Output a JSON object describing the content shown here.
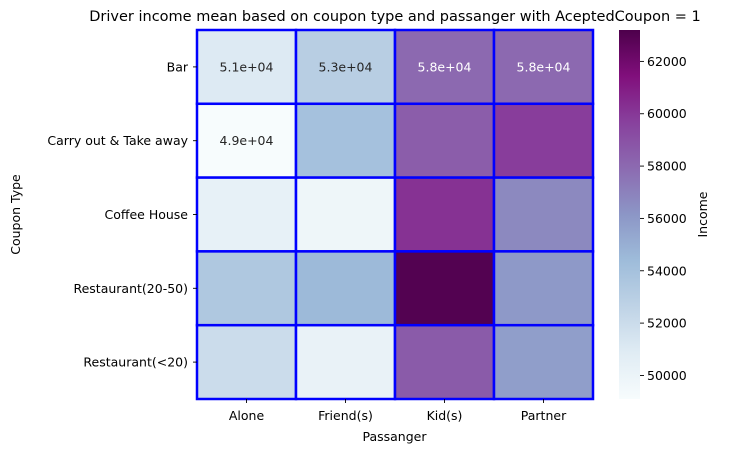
{
  "chart_data": {
    "type": "heatmap",
    "title": "Driver income mean based on coupon type and passanger with AceptedCoupon = 1",
    "xlabel": "Passanger",
    "ylabel": "Coupon Type",
    "x_categories": [
      "Alone",
      "Friend(s)",
      "Kid(s)",
      "Partner"
    ],
    "y_categories": [
      "Bar",
      "Carry out & Take away",
      "Coffee House",
      "Restaurant(20-50)",
      "Restaurant(<20)"
    ],
    "values": [
      [
        51000,
        53000,
        58000,
        58000
      ],
      [
        49000,
        54000,
        58500,
        59800
      ],
      [
        50300,
        49800,
        60200,
        56700
      ],
      [
        53500,
        54500,
        63000,
        56000
      ],
      [
        52000,
        50200,
        58600,
        55800
      ]
    ],
    "annotations": [
      [
        "5.1e+04",
        "5.3e+04",
        "5.8e+04",
        "5.8e+04"
      ],
      [
        "4.9e+04",
        "",
        "",
        ""
      ],
      [
        "",
        "",
        "",
        ""
      ],
      [
        "",
        "",
        "",
        ""
      ],
      [
        "",
        "",
        "",
        ""
      ]
    ],
    "colorbar": {
      "label": "Income",
      "range": [
        49100,
        63200
      ],
      "ticks": [
        "50000",
        "52000",
        "54000",
        "56000",
        "58000",
        "60000",
        "62000"
      ],
      "colormap": "BuPu"
    },
    "cell_border_color": "#0000ff"
  }
}
